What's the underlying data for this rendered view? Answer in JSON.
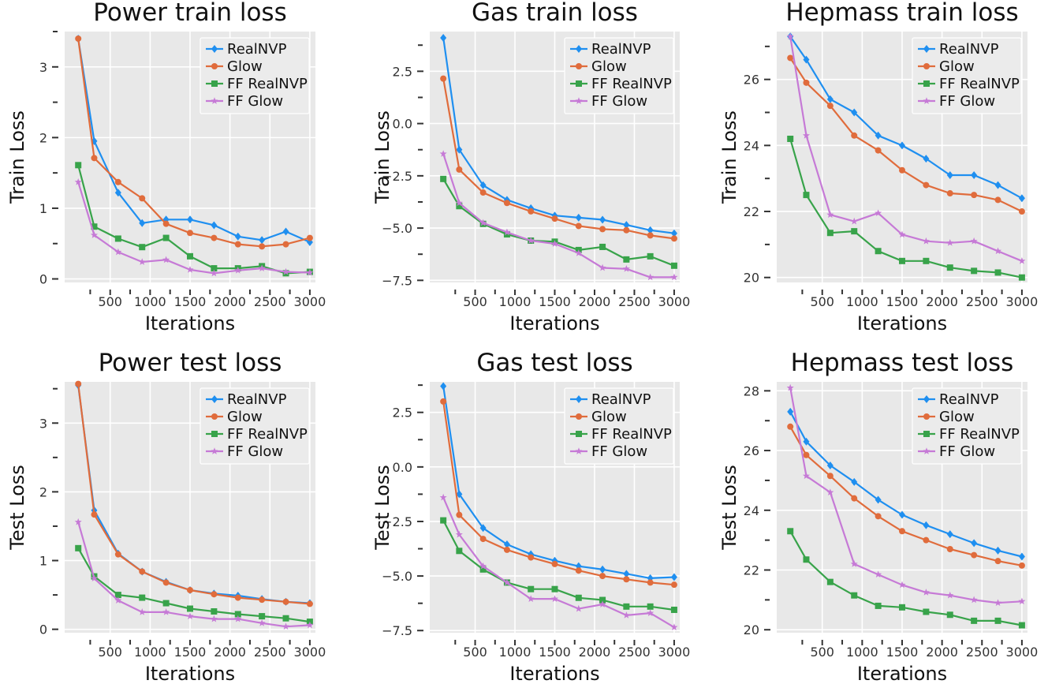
{
  "colors": {
    "RealNVP": "#1f8ff0",
    "Glow": "#e06c3c",
    "FF RealNVP": "#38a34a",
    "FF Glow": "#c67ad6"
  },
  "markers": {
    "RealNVP": "diamond",
    "Glow": "circle",
    "FF RealNVP": "square",
    "FF Glow": "star"
  },
  "chart_data": [
    {
      "id": "power-train",
      "type": "line",
      "title": "Power train loss",
      "xlabel": "Iterations",
      "ylabel": "Train Loss",
      "x": [
        100,
        300,
        600,
        900,
        1200,
        1500,
        1800,
        2100,
        2400,
        2700,
        3000
      ],
      "xticks": [
        500,
        1000,
        1500,
        2000,
        2500,
        3000
      ],
      "xtick_labels": [
        "500",
        "1000",
        "1500",
        "2000",
        "2500",
        "3000"
      ],
      "xlim": [
        -70,
        3070
      ],
      "ylim": [
        -0.05,
        3.5
      ],
      "yticks": [
        0,
        1,
        2,
        3
      ],
      "ytick_labels": [
        "0",
        "1",
        "2",
        "3"
      ],
      "yminor": [
        0.5,
        1.5,
        2.5,
        3.5
      ],
      "legend": "top-right",
      "series": [
        {
          "name": "RealNVP",
          "values": [
            3.4,
            1.95,
            1.22,
            0.79,
            0.84,
            0.84,
            0.76,
            0.6,
            0.55,
            0.67,
            0.52
          ]
        },
        {
          "name": "Glow",
          "values": [
            3.4,
            1.71,
            1.37,
            1.14,
            0.78,
            0.65,
            0.58,
            0.49,
            0.46,
            0.49,
            0.58
          ]
        },
        {
          "name": "FF RealNVP",
          "values": [
            1.61,
            0.74,
            0.57,
            0.45,
            0.58,
            0.32,
            0.15,
            0.15,
            0.18,
            0.08,
            0.1
          ]
        },
        {
          "name": "FF Glow",
          "values": [
            1.37,
            0.62,
            0.38,
            0.24,
            0.27,
            0.13,
            0.08,
            0.12,
            0.15,
            0.1,
            0.09
          ]
        }
      ]
    },
    {
      "id": "gas-train",
      "type": "line",
      "title": "Gas train loss",
      "xlabel": "Iterations",
      "ylabel": "Train Loss",
      "x": [
        100,
        300,
        600,
        900,
        1200,
        1500,
        1800,
        2100,
        2400,
        2700,
        3000
      ],
      "xticks": [
        500,
        1000,
        1500,
        2000,
        2500,
        3000
      ],
      "xtick_labels": [
        "500",
        "1000",
        "1500",
        "2000",
        "2500",
        "3000"
      ],
      "xlim": [
        -70,
        3070
      ],
      "ylim": [
        -7.6,
        4.4
      ],
      "yticks": [
        -7.5,
        -5.0,
        -2.5,
        0.0,
        2.5
      ],
      "ytick_labels": [
        "−7.5",
        "−5.0",
        "−2.5",
        "0.0",
        "2.5"
      ],
      "yminor": [
        -6.25,
        -3.75,
        -1.25,
        1.25,
        3.75
      ],
      "legend": "top-right",
      "series": [
        {
          "name": "RealNVP",
          "values": [
            4.1,
            -1.25,
            -2.95,
            -3.65,
            -4.05,
            -4.4,
            -4.5,
            -4.6,
            -4.85,
            -5.1,
            -5.25
          ]
        },
        {
          "name": "Glow",
          "values": [
            2.15,
            -2.2,
            -3.3,
            -3.8,
            -4.2,
            -4.55,
            -4.9,
            -5.05,
            -5.1,
            -5.35,
            -5.5
          ]
        },
        {
          "name": "FF RealNVP",
          "values": [
            -2.65,
            -3.95,
            -4.8,
            -5.3,
            -5.6,
            -5.65,
            -6.05,
            -5.9,
            -6.5,
            -6.35,
            -6.8
          ]
        },
        {
          "name": "FF Glow",
          "values": [
            -1.45,
            -3.8,
            -4.75,
            -5.2,
            -5.6,
            -5.75,
            -6.2,
            -6.9,
            -6.95,
            -7.35,
            -7.35
          ]
        }
      ]
    },
    {
      "id": "hepmass-train",
      "type": "line",
      "title": "Hepmass train loss",
      "xlabel": "Iterations",
      "ylabel": "Train Loss",
      "x": [
        100,
        300,
        600,
        900,
        1200,
        1500,
        1800,
        2100,
        2400,
        2700,
        3000
      ],
      "xticks": [
        500,
        1000,
        1500,
        2000,
        2500,
        3000
      ],
      "xtick_labels": [
        "500",
        "1000",
        "1500",
        "2000",
        "2500",
        "3000"
      ],
      "xlim": [
        -70,
        3070
      ],
      "ylim": [
        19.85,
        27.45
      ],
      "yticks": [
        20,
        22,
        24,
        26
      ],
      "ytick_labels": [
        "20",
        "22",
        "24",
        "26"
      ],
      "yminor": [
        21,
        23,
        25,
        27
      ],
      "legend": "top-right",
      "series": [
        {
          "name": "RealNVP",
          "values": [
            27.3,
            26.6,
            25.4,
            25.0,
            24.3,
            24.0,
            23.6,
            23.1,
            23.1,
            22.8,
            22.4
          ]
        },
        {
          "name": "Glow",
          "values": [
            26.65,
            25.9,
            25.2,
            24.3,
            23.85,
            23.25,
            22.8,
            22.55,
            22.5,
            22.35,
            22.0
          ]
        },
        {
          "name": "FF RealNVP",
          "values": [
            24.2,
            22.5,
            21.35,
            21.4,
            20.8,
            20.5,
            20.5,
            20.3,
            20.2,
            20.15,
            20.0
          ]
        },
        {
          "name": "FF Glow",
          "values": [
            27.3,
            24.3,
            21.9,
            21.7,
            21.95,
            21.3,
            21.1,
            21.05,
            21.1,
            20.8,
            20.5
          ]
        }
      ]
    },
    {
      "id": "power-test",
      "type": "line",
      "title": "Power test loss",
      "xlabel": "Iterations",
      "ylabel": "Test Loss",
      "x": [
        100,
        300,
        600,
        900,
        1200,
        1500,
        1800,
        2100,
        2400,
        2700,
        3000
      ],
      "xticks": [
        500,
        1000,
        1500,
        2000,
        2500,
        3000
      ],
      "xtick_labels": [
        "500",
        "1000",
        "1500",
        "2000",
        "2500",
        "3000"
      ],
      "xlim": [
        -70,
        3070
      ],
      "ylim": [
        -0.05,
        3.6
      ],
      "yticks": [
        0,
        1,
        2,
        3
      ],
      "ytick_labels": [
        "0",
        "1",
        "2",
        "3"
      ],
      "yminor": [
        0.5,
        1.5,
        2.5,
        3.5
      ],
      "legend": "top-right",
      "series": [
        {
          "name": "RealNVP",
          "values": [
            3.55,
            1.73,
            1.1,
            0.84,
            0.69,
            0.57,
            0.52,
            0.49,
            0.44,
            0.4,
            0.38
          ]
        },
        {
          "name": "Glow",
          "values": [
            3.57,
            1.67,
            1.09,
            0.84,
            0.68,
            0.57,
            0.51,
            0.46,
            0.43,
            0.4,
            0.37
          ]
        },
        {
          "name": "FF RealNVP",
          "values": [
            1.18,
            0.77,
            0.5,
            0.46,
            0.38,
            0.3,
            0.26,
            0.22,
            0.19,
            0.16,
            0.11
          ]
        },
        {
          "name": "FF Glow",
          "values": [
            1.56,
            0.74,
            0.42,
            0.25,
            0.25,
            0.19,
            0.15,
            0.15,
            0.09,
            0.04,
            0.06
          ]
        }
      ]
    },
    {
      "id": "gas-test",
      "type": "line",
      "title": "Gas test loss",
      "xlabel": "Iterations",
      "ylabel": "Test Loss",
      "x": [
        100,
        300,
        600,
        900,
        1200,
        1500,
        1800,
        2100,
        2400,
        2700,
        3000
      ],
      "xticks": [
        500,
        1000,
        1500,
        2000,
        2500,
        3000
      ],
      "xtick_labels": [
        "500",
        "1000",
        "1500",
        "2000",
        "2500",
        "3000"
      ],
      "xlim": [
        -70,
        3070
      ],
      "ylim": [
        -7.6,
        3.9
      ],
      "yticks": [
        -7.5,
        -5.0,
        -2.5,
        0.0,
        2.5
      ],
      "ytick_labels": [
        "−7.5",
        "−5.0",
        "−2.5",
        "0.0",
        "2.5"
      ],
      "yminor": [
        -6.25,
        -3.75,
        -1.25,
        1.25,
        3.75
      ],
      "legend": "top-right",
      "series": [
        {
          "name": "RealNVP",
          "values": [
            3.7,
            -1.25,
            -2.8,
            -3.55,
            -4.0,
            -4.3,
            -4.55,
            -4.7,
            -4.9,
            -5.1,
            -5.05
          ]
        },
        {
          "name": "Glow",
          "values": [
            3.0,
            -2.2,
            -3.3,
            -3.8,
            -4.15,
            -4.45,
            -4.75,
            -5.0,
            -5.15,
            -5.3,
            -5.4
          ]
        },
        {
          "name": "FF RealNVP",
          "values": [
            -2.45,
            -3.85,
            -4.7,
            -5.3,
            -5.6,
            -5.6,
            -6.0,
            -6.1,
            -6.4,
            -6.4,
            -6.55
          ]
        },
        {
          "name": "FF Glow",
          "values": [
            -1.4,
            -3.1,
            -4.55,
            -5.3,
            -6.05,
            -6.05,
            -6.5,
            -6.3,
            -6.8,
            -6.7,
            -7.35
          ]
        }
      ]
    },
    {
      "id": "hepmass-test",
      "type": "line",
      "title": "Hepmass test loss",
      "xlabel": "Iterations",
      "ylabel": "Test Loss",
      "x": [
        100,
        300,
        600,
        900,
        1200,
        1500,
        1800,
        2100,
        2400,
        2700,
        3000
      ],
      "xticks": [
        500,
        1000,
        1500,
        2000,
        2500,
        3000
      ],
      "xtick_labels": [
        "500",
        "1000",
        "1500",
        "2000",
        "2500",
        "3000"
      ],
      "xlim": [
        -70,
        3070
      ],
      "ylim": [
        19.9,
        28.3
      ],
      "yticks": [
        20,
        22,
        24,
        26,
        28
      ],
      "ytick_labels": [
        "20",
        "22",
        "24",
        "26",
        "28"
      ],
      "yminor": [
        21,
        23,
        25,
        27
      ],
      "legend": "top-right",
      "series": [
        {
          "name": "RealNVP",
          "values": [
            27.3,
            26.3,
            25.5,
            24.95,
            24.35,
            23.85,
            23.5,
            23.2,
            22.9,
            22.65,
            22.45
          ]
        },
        {
          "name": "Glow",
          "values": [
            26.8,
            25.85,
            25.15,
            24.4,
            23.8,
            23.3,
            23.0,
            22.7,
            22.5,
            22.3,
            22.15
          ]
        },
        {
          "name": "FF RealNVP",
          "values": [
            23.3,
            22.35,
            21.6,
            21.15,
            20.8,
            20.75,
            20.6,
            20.5,
            20.3,
            20.3,
            20.15
          ]
        },
        {
          "name": "FF Glow",
          "values": [
            28.1,
            25.15,
            24.6,
            22.2,
            21.85,
            21.5,
            21.25,
            21.15,
            21.0,
            20.9,
            20.95
          ]
        }
      ]
    }
  ]
}
